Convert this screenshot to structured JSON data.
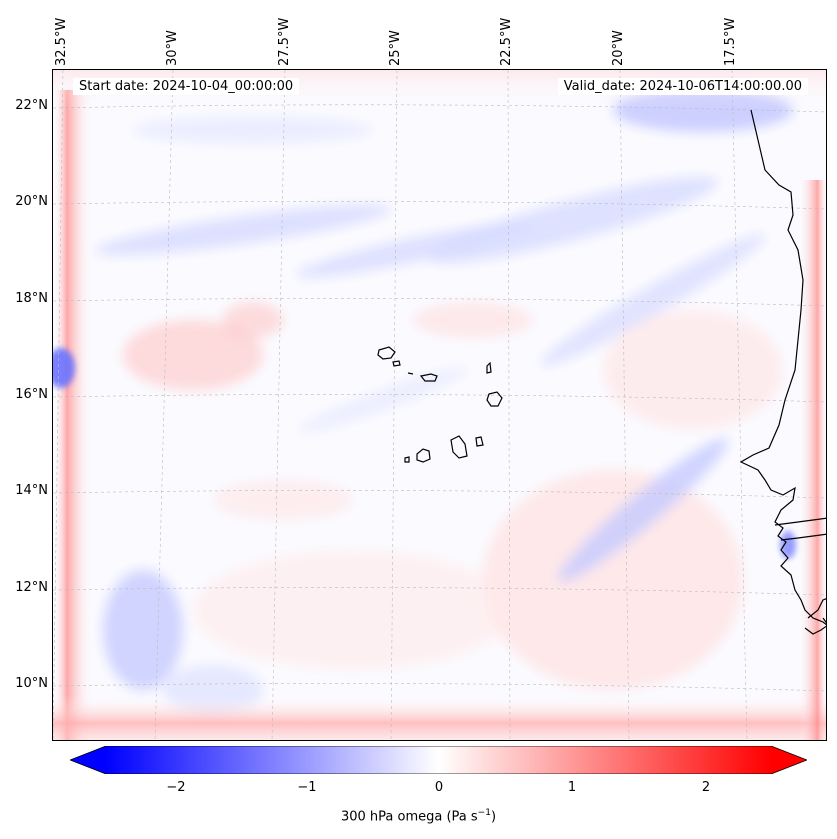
{
  "map": {
    "start_label": "Start date: 2024-10-04_00:00:00",
    "valid_label": "Valid_date: 2024-10-06T14:00:00.00",
    "lon_labels": [
      "32.5°W",
      "30°W",
      "27.5°W",
      "25°W",
      "22.5°W",
      "20°W",
      "17.5°W"
    ],
    "lat_labels": [
      "22°N",
      "20°N",
      "18°N",
      "16°N",
      "14°N",
      "12°N",
      "10°N"
    ],
    "extent": {
      "lon_min": -33.0,
      "lon_max": -16.0,
      "lat_min": 9.0,
      "lat_max": 22.8
    },
    "coastline_color": "#000000",
    "gridlines": true
  },
  "colorbar": {
    "cmap": "bwr",
    "vmin": -2.5,
    "vmax": 2.5,
    "extend": "both",
    "ticks": [
      "−2",
      "−1",
      "0",
      "1",
      "2"
    ],
    "label_prefix": "300 hPa omega (Pa s",
    "label_exp": "−1",
    "label_suffix": ")",
    "low_color": "#0000ff",
    "mid_color": "#ffffff",
    "high_color": "#ff0000"
  }
}
